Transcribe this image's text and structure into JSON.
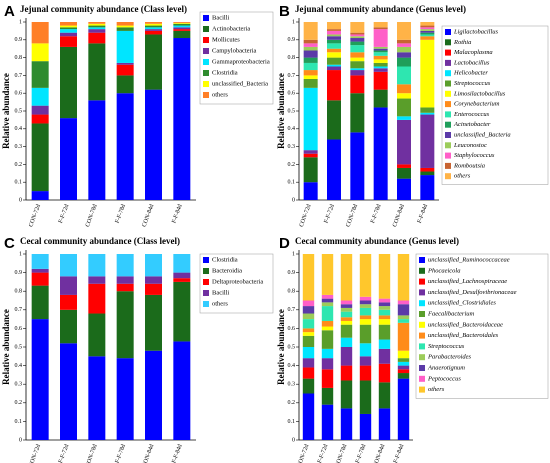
{
  "chart_data": [
    {
      "type": "bar",
      "stacked": true,
      "panel": "A",
      "title": "Jejunal community abundance (Class level)",
      "y_label": "Relative abundance",
      "categories": [
        "CON-72d",
        "F-F-72d",
        "CON-78d",
        "F-F-78d",
        "CON-84d",
        "F-F-84d"
      ],
      "ylim": [
        0,
        1
      ],
      "yticks": [
        0,
        0.1,
        0.2,
        0.3,
        0.4,
        0.5,
        0.6,
        0.7,
        0.8,
        0.9,
        1
      ],
      "legend_italic": false,
      "series": [
        {
          "name": "Bacilli",
          "color": "#0000ff",
          "values": [
            0.05,
            0.46,
            0.56,
            0.6,
            0.62,
            0.91
          ]
        },
        {
          "name": "Actinobacteria",
          "color": "#1b6b1b",
          "values": [
            0.38,
            0.4,
            0.32,
            0.1,
            0.31,
            0.04
          ]
        },
        {
          "name": "Mollicutes",
          "color": "#ff0000",
          "values": [
            0.05,
            0.06,
            0.06,
            0.06,
            0.02,
            0.01
          ]
        },
        {
          "name": "Campylobacteria",
          "color": "#7030a0",
          "values": [
            0.05,
            0.02,
            0.02,
            0.01,
            0.01,
            0.01
          ]
        },
        {
          "name": "Gammaproteobacteria",
          "color": "#00e5ff",
          "values": [
            0.1,
            0.02,
            0.01,
            0.18,
            0.01,
            0.01
          ]
        },
        {
          "name": "Clostridia",
          "color": "#2e8b2e",
          "values": [
            0.15,
            0.01,
            0.01,
            0.02,
            0.01,
            0.01
          ]
        },
        {
          "name": "unclassified_Bacteria",
          "color": "#ffff00",
          "values": [
            0.1,
            0.01,
            0.01,
            0.01,
            0.01,
            0.005
          ]
        },
        {
          "name": "others",
          "color": "#ff7f27",
          "values": [
            0.12,
            0.02,
            0.01,
            0.02,
            0.01,
            0.005
          ]
        }
      ]
    },
    {
      "type": "bar",
      "stacked": true,
      "panel": "B",
      "title": "Jejunal community abundance (Genus level)",
      "y_label": "Relative abundance",
      "categories": [
        "CON-72d",
        "F-F-72d",
        "CON-78d",
        "F-F-78d",
        "CON-84d",
        "F-F-84d"
      ],
      "ylim": [
        0,
        1
      ],
      "yticks": [
        0,
        0.1,
        0.2,
        0.3,
        0.4,
        0.5,
        0.6,
        0.7,
        0.8,
        0.9,
        1
      ],
      "legend_italic": true,
      "series": [
        {
          "name": "Ligilactobacillus",
          "color": "#0000ff",
          "values": [
            0.1,
            0.34,
            0.38,
            0.52,
            0.12,
            0.14
          ]
        },
        {
          "name": "Rothia",
          "color": "#1b6b1b",
          "values": [
            0.14,
            0.22,
            0.22,
            0.1,
            0.06,
            0.02
          ]
        },
        {
          "name": "Malacoplasma",
          "color": "#ff0000",
          "values": [
            0.02,
            0.17,
            0.1,
            0.1,
            0.02,
            0.02
          ]
        },
        {
          "name": "Lactobacillus",
          "color": "#7030a0",
          "values": [
            0.02,
            0.02,
            0.03,
            0.02,
            0.25,
            0.3
          ]
        },
        {
          "name": "Helicobacter",
          "color": "#00e5ff",
          "values": [
            0.35,
            0.01,
            0.01,
            0.01,
            0.02,
            0.01
          ]
        },
        {
          "name": "Streptococcus",
          "color": "#5a9e2a",
          "values": [
            0.05,
            0.04,
            0.04,
            0.02,
            0.1,
            0.03
          ]
        },
        {
          "name": "Limosilactobacillus",
          "color": "#ffff00",
          "values": [
            0.02,
            0.03,
            0.02,
            0.02,
            0.03,
            0.38
          ]
        },
        {
          "name": "Corynebacterium",
          "color": "#ff8c1a",
          "values": [
            0.03,
            0.02,
            0.03,
            0.02,
            0.05,
            0.02
          ]
        },
        {
          "name": "Enterococcus",
          "color": "#2ee6b0",
          "values": [
            0.04,
            0.03,
            0.04,
            0.02,
            0.1,
            0.01
          ]
        },
        {
          "name": "Acinetobacter",
          "color": "#1f9e5a",
          "values": [
            0.03,
            0.02,
            0.02,
            0.01,
            0.05,
            0.01
          ]
        },
        {
          "name": "unclassified_Bacteria",
          "color": "#5b3aa8",
          "values": [
            0.04,
            0.02,
            0.02,
            0.01,
            0.03,
            0.01
          ]
        },
        {
          "name": "Leuconostoc",
          "color": "#9ccc5a",
          "values": [
            0.02,
            0.01,
            0.01,
            0.01,
            0.03,
            0.01
          ]
        },
        {
          "name": "Staphylococcus",
          "color": "#ff5fc8",
          "values": [
            0.02,
            0.02,
            0.01,
            0.1,
            0.02,
            0.01
          ]
        },
        {
          "name": "Romboutsia",
          "color": "#c86432",
          "values": [
            0.02,
            0.01,
            0.01,
            0.01,
            0.02,
            0.01
          ]
        },
        {
          "name": "others",
          "color": "#ffb347",
          "values": [
            0.1,
            0.04,
            0.06,
            0.03,
            0.1,
            0.02
          ]
        }
      ]
    },
    {
      "type": "bar",
      "stacked": true,
      "panel": "C",
      "title": "Cecal community abundance (Class level)",
      "y_label": "Relative abundance",
      "categories": [
        "CON-72d",
        "F-F-72d",
        "CON-78d",
        "F-F-78d",
        "CON-84d",
        "F-F-84d"
      ],
      "ylim": [
        0,
        1
      ],
      "yticks": [
        0,
        0.1,
        0.2,
        0.3,
        0.4,
        0.5,
        0.6,
        0.7,
        0.8,
        0.9,
        1
      ],
      "legend_italic": false,
      "series": [
        {
          "name": "Clostridia",
          "color": "#0000ff",
          "values": [
            0.65,
            0.52,
            0.45,
            0.44,
            0.48,
            0.53
          ]
        },
        {
          "name": "Bacteroidia",
          "color": "#1b6b1b",
          "values": [
            0.18,
            0.18,
            0.23,
            0.36,
            0.3,
            0.32
          ]
        },
        {
          "name": "Deltaproteobacteria",
          "color": "#ff0000",
          "values": [
            0.07,
            0.08,
            0.16,
            0.04,
            0.06,
            0.02
          ]
        },
        {
          "name": "Bacilli",
          "color": "#7030a0",
          "values": [
            0.02,
            0.1,
            0.04,
            0.04,
            0.04,
            0.03
          ]
        },
        {
          "name": "others",
          "color": "#33ccff",
          "values": [
            0.08,
            0.12,
            0.12,
            0.12,
            0.12,
            0.1
          ]
        }
      ]
    },
    {
      "type": "bar",
      "stacked": true,
      "panel": "D",
      "title": "Cecal community abundance (Genus level)",
      "y_label": "Relative abundance",
      "categories": [
        "CON-72d",
        "F-F-72d",
        "CON-78d",
        "F-F-78d",
        "CON-84d",
        "F-F-84d"
      ],
      "ylim": [
        0,
        1
      ],
      "yticks": [
        0,
        0.1,
        0.2,
        0.3,
        0.4,
        0.5,
        0.6,
        0.7,
        0.8,
        0.9,
        1
      ],
      "legend_italic": true,
      "series": [
        {
          "name": "unclassified_Ruminococcaceae",
          "color": "#0000ff",
          "values": [
            0.25,
            0.19,
            0.17,
            0.14,
            0.17,
            0.33
          ]
        },
        {
          "name": "Phocaeicola",
          "color": "#1b6b1b",
          "values": [
            0.08,
            0.09,
            0.15,
            0.18,
            0.14,
            0.03
          ]
        },
        {
          "name": "unclassified_Lachnospiraceae",
          "color": "#ff0000",
          "values": [
            0.06,
            0.1,
            0.08,
            0.08,
            0.1,
            0.02
          ]
        },
        {
          "name": "unclassified_Desulfovibrionaceae",
          "color": "#7030a0",
          "values": [
            0.05,
            0.06,
            0.1,
            0.05,
            0.08,
            0.02
          ]
        },
        {
          "name": "unclassified_Clostridiales",
          "color": "#00e5ff",
          "values": [
            0.06,
            0.05,
            0.05,
            0.07,
            0.05,
            0.02
          ]
        },
        {
          "name": "Faecalibacterium",
          "color": "#5a9e2a",
          "values": [
            0.06,
            0.1,
            0.07,
            0.1,
            0.08,
            0.02
          ]
        },
        {
          "name": "unclassified_Bacteroidaceae",
          "color": "#ffff00",
          "values": [
            0.02,
            0.02,
            0.02,
            0.03,
            0.03,
            0.04
          ]
        },
        {
          "name": "unclassified_Bacteroidales",
          "color": "#ff8c1a",
          "values": [
            0.02,
            0.03,
            0.02,
            0.02,
            0.02,
            0.15
          ]
        },
        {
          "name": "Streptococcus",
          "color": "#2ee6b0",
          "values": [
            0.05,
            0.08,
            0.03,
            0.04,
            0.03,
            0.02
          ]
        },
        {
          "name": "Parabacteroides",
          "color": "#9ccc5a",
          "values": [
            0.03,
            0.02,
            0.02,
            0.02,
            0.02,
            0.02
          ]
        },
        {
          "name": "Anaerotignum",
          "color": "#5b3aa8",
          "values": [
            0.04,
            0.02,
            0.02,
            0.02,
            0.02,
            0.06
          ]
        },
        {
          "name": "Peptococcus",
          "color": "#ff5fc8",
          "values": [
            0.03,
            0.02,
            0.02,
            0.02,
            0.02,
            0.02
          ]
        },
        {
          "name": "others",
          "color": "#ffc72c",
          "values": [
            0.25,
            0.22,
            0.25,
            0.23,
            0.24,
            0.25
          ]
        }
      ]
    }
  ]
}
